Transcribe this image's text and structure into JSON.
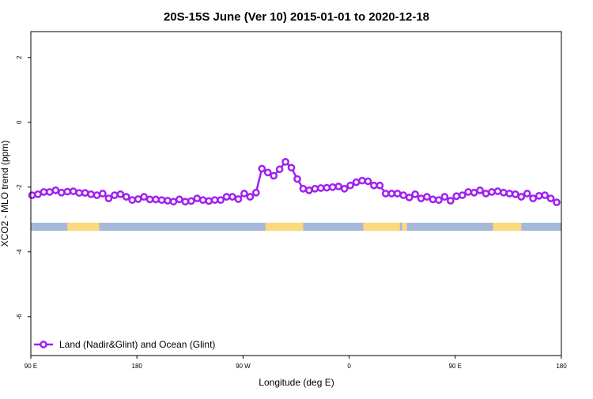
{
  "chart_data": {
    "type": "line",
    "title": "20S-15S June (Ver 10)   2015-01-01 to 2020-12-18",
    "x_label": "Longitude (deg E)",
    "y_label": "XCO2 - MLO trend (ppm)",
    "xlim": [
      90,
      540
    ],
    "ylim": [
      -7.2,
      2.8
    ],
    "xticks": [
      {
        "value": 90,
        "label": "90 E"
      },
      180,
      {
        "value": 270,
        "label": "90 W"
      },
      {
        "value": 360,
        "label": "0"
      },
      {
        "value": 450,
        "label": "90 E"
      },
      {
        "value": 540,
        "label": "180"
      }
    ],
    "yticks": [
      2,
      0,
      -2,
      -4,
      -6
    ],
    "legend": "bottom-left",
    "surface_strip": {
      "ylim": [
        -3.35,
        -3.1
      ],
      "ocean_color": "#a4b9da",
      "land_color": "#fcd97c",
      "land_segments": [
        [
          121,
          148
        ],
        [
          289,
          321
        ],
        [
          372,
          403
        ],
        [
          405,
          409
        ],
        [
          482,
          506
        ]
      ]
    },
    "x": [
      91,
      96,
      101,
      106,
      111,
      116,
      121,
      126,
      131,
      136,
      141,
      146,
      151,
      156,
      161,
      166,
      171,
      176,
      181,
      186,
      191,
      196,
      201,
      206,
      211,
      216,
      221,
      226,
      231,
      236,
      241,
      246,
      251,
      256,
      261,
      266,
      271,
      276,
      281,
      286,
      291,
      296,
      301,
      306,
      311,
      316,
      321,
      326,
      331,
      336,
      341,
      346,
      351,
      356,
      361,
      366,
      371,
      376,
      381,
      386,
      391,
      396,
      401,
      406,
      411,
      416,
      421,
      426,
      431,
      436,
      441,
      446,
      451,
      456,
      461,
      466,
      471,
      476,
      481,
      486,
      491,
      496,
      501,
      506,
      511,
      516,
      521,
      526,
      531,
      536
    ],
    "series": [
      {
        "name": "Land (Nadir&Glint) and Ocean (Glint)",
        "color": "#a020f0",
        "values": [
          -2.25,
          -2.22,
          -2.15,
          -2.15,
          -2.1,
          -2.17,
          -2.14,
          -2.13,
          -2.18,
          -2.18,
          -2.22,
          -2.25,
          -2.2,
          -2.35,
          -2.25,
          -2.22,
          -2.3,
          -2.4,
          -2.37,
          -2.3,
          -2.38,
          -2.38,
          -2.4,
          -2.42,
          -2.45,
          -2.38,
          -2.45,
          -2.43,
          -2.35,
          -2.4,
          -2.43,
          -2.4,
          -2.4,
          -2.3,
          -2.3,
          -2.37,
          -2.2,
          -2.3,
          -2.17,
          -1.43,
          -1.55,
          -1.65,
          -1.45,
          -1.22,
          -1.4,
          -1.75,
          -2.05,
          -2.1,
          -2.05,
          -2.03,
          -2.02,
          -2.0,
          -1.98,
          -2.05,
          -1.95,
          -1.85,
          -1.8,
          -1.82,
          -1.95,
          -1.95,
          -2.2,
          -2.2,
          -2.2,
          -2.25,
          -2.32,
          -2.22,
          -2.35,
          -2.3,
          -2.38,
          -2.4,
          -2.3,
          -2.42,
          -2.28,
          -2.25,
          -2.15,
          -2.17,
          -2.1,
          -2.2,
          -2.15,
          -2.13,
          -2.17,
          -2.2,
          -2.22,
          -2.3,
          -2.2,
          -2.35,
          -2.27,
          -2.25,
          -2.35,
          -2.47
        ]
      }
    ]
  }
}
